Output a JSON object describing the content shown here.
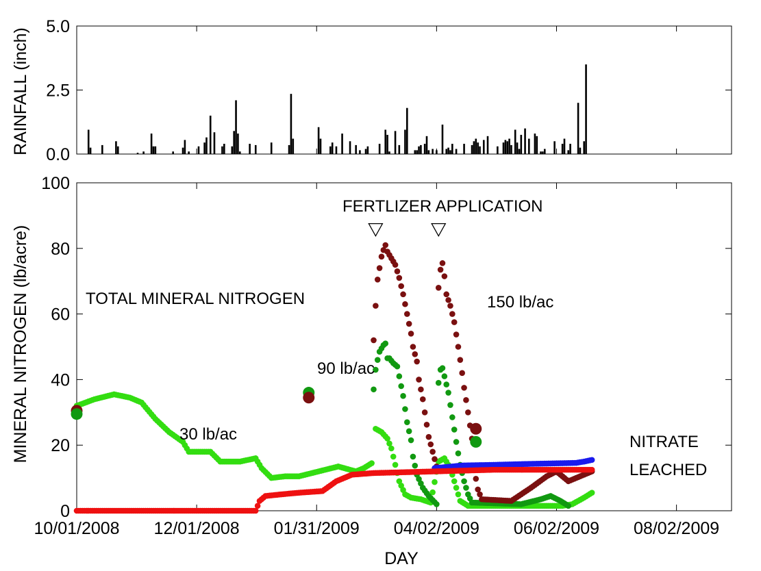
{
  "chart_data": [
    {
      "type": "bar",
      "ylabel": "RAINFALL (inch)",
      "ylim": [
        0,
        5
      ],
      "yticks": [
        "0.0",
        "2.5",
        "5.0"
      ],
      "xlim": [
        "10/01/2008",
        "08/30/2009"
      ],
      "colors": {
        "bar": "#000000"
      },
      "series": [
        {
          "dates": [
            "2008-10-07",
            "2008-10-08",
            "2008-10-14",
            "2008-10-21",
            "2008-10-22",
            "2008-11-01",
            "2008-11-04",
            "2008-11-08",
            "2008-11-09",
            "2008-11-10",
            "2008-11-19",
            "2008-11-24",
            "2008-11-25",
            "2008-11-27",
            "2008-12-02",
            "2008-12-05",
            "2008-12-06",
            "2008-12-08",
            "2008-12-10",
            "2008-12-14",
            "2008-12-15",
            "2008-12-19",
            "2008-12-20",
            "2008-12-21",
            "2008-12-22",
            "2008-12-23",
            "2008-12-28",
            "2008-12-31",
            "2009-01-08",
            "2009-01-17",
            "2009-01-18",
            "2009-01-19",
            "2009-02-01",
            "2009-02-02",
            "2009-02-07",
            "2009-02-08",
            "2009-02-10",
            "2009-02-13",
            "2009-02-17",
            "2009-02-20",
            "2009-02-22",
            "2009-02-25",
            "2009-02-26",
            "2009-03-04",
            "2009-03-07",
            "2009-03-08",
            "2009-03-09",
            "2009-03-12",
            "2009-03-14",
            "2009-03-17",
            "2009-03-18",
            "2009-03-22",
            "2009-03-23",
            "2009-03-24",
            "2009-03-25",
            "2009-03-27",
            "2009-03-28",
            "2009-03-29",
            "2009-03-31",
            "2009-04-02",
            "2009-04-05",
            "2009-04-07",
            "2009-04-08",
            "2009-04-09",
            "2009-04-10",
            "2009-04-12",
            "2009-04-16",
            "2009-04-20",
            "2009-04-21",
            "2009-04-22",
            "2009-04-23",
            "2009-04-24",
            "2009-04-26",
            "2009-04-28",
            "2009-05-03",
            "2009-05-06",
            "2009-05-07",
            "2009-05-08",
            "2009-05-09",
            "2009-05-10",
            "2009-05-12",
            "2009-05-13",
            "2009-05-14",
            "2009-05-15",
            "2009-05-17",
            "2009-05-19",
            "2009-05-22",
            "2009-05-23",
            "2009-05-25",
            "2009-05-26",
            "2009-05-27",
            "2009-06-01",
            "2009-06-05",
            "2009-06-06",
            "2009-06-08",
            "2009-06-09",
            "2009-06-13",
            "2009-06-14",
            "2009-06-16",
            "2009-06-17"
          ],
          "values": [
            0.95,
            0.25,
            0.35,
            0.5,
            0.3,
            0.05,
            0.1,
            0.8,
            0.3,
            0.3,
            0.1,
            0.25,
            0.55,
            0.1,
            0.3,
            0.45,
            0.65,
            1.5,
            0.85,
            0.3,
            0.4,
            0.3,
            0.9,
            2.1,
            0.8,
            0.1,
            0.4,
            0.35,
            0.45,
            0.35,
            2.35,
            0.6,
            1.05,
            0.6,
            0.3,
            0.45,
            0.3,
            0.8,
            0.5,
            0.35,
            0.15,
            0.2,
            0.3,
            0.4,
            0.95,
            0.75,
            0.1,
            0.9,
            0.35,
            0.95,
            1.8,
            0.15,
            0.15,
            0.3,
            0.35,
            0.4,
            0.7,
            0.15,
            0.2,
            0.15,
            1.15,
            0.2,
            0.25,
            0.15,
            0.4,
            0.2,
            0.4,
            0.35,
            0.5,
            0.6,
            0.45,
            0.3,
            0.55,
            0.7,
            0.3,
            0.45,
            0.55,
            0.5,
            0.6,
            0.35,
            0.95,
            0.45,
            0.2,
            0.75,
            1.0,
            0.6,
            0.8,
            0.7,
            0.1,
            0.1,
            0.2,
            0.5,
            0.4,
            0.6,
            0.15,
            0.4,
            2.0,
            0.25,
            0.5,
            3.5
          ]
        }
      ]
    },
    {
      "type": "scatter",
      "xlabel": "DAY",
      "ylabel": "MINERAL NITROGEN (lb/acre)",
      "ylim": [
        0,
        100
      ],
      "yticks": [
        "0",
        "20",
        "40",
        "60",
        "80",
        "100"
      ],
      "xlim": [
        "10/01/2008",
        "08/30/2009"
      ],
      "xticks": [
        "10/01/2008",
        "12/01/2008",
        "01/31/2009",
        "04/02/2009",
        "06/02/2009",
        "08/02/2009"
      ],
      "annotations": {
        "fertilizer": "FERTLIZER APPLICATION",
        "total": "TOTAL  MINERAL NITROGEN",
        "r90": "90 lb/ac",
        "r150": "150 lb/ac",
        "r30": "30 lb/ac",
        "nitrate1": "NITRATE",
        "nitrate2": "LEACHED"
      },
      "fertilizer_application_dates": [
        "2009-03-02",
        "2009-04-03"
      ],
      "series": [
        {
          "color": "#33dd11",
          "pts": [
            [
              "2008-10-01",
              32
            ],
            [
              "2008-10-10",
              34
            ],
            [
              "2008-10-20",
              35.5
            ],
            [
              "2008-10-28",
              34.5
            ],
            [
              "2008-11-03",
              33
            ],
            [
              "2008-11-10",
              28
            ],
            [
              "2008-11-17",
              24
            ],
            [
              "2008-11-24",
              21
            ],
            [
              "2008-11-27",
              18
            ],
            [
              "2008-12-02",
              18
            ],
            [
              "2008-12-08",
              18
            ],
            [
              "2008-12-13",
              15
            ],
            [
              "2008-12-23",
              15
            ],
            [
              "2008-12-31",
              16
            ],
            [
              "2009-01-03",
              13
            ],
            [
              "2009-01-08",
              10
            ],
            [
              "2009-01-15",
              10.5
            ],
            [
              "2009-01-22",
              10.5
            ],
            [
              "2009-02-01",
              12
            ],
            [
              "2009-02-11",
              13.5
            ],
            [
              "2009-02-17",
              12.5
            ],
            [
              "2009-02-20",
              12
            ],
            [
              "2009-02-24",
              13
            ],
            [
              "2009-02-28",
              14.5
            ],
            [
              "2009-03-02",
              25
            ],
            [
              "2009-03-05",
              24
            ],
            [
              "2009-03-08",
              22
            ],
            [
              "2009-03-10",
              19
            ],
            [
              "2009-03-14",
              9
            ],
            [
              "2009-03-17",
              5
            ],
            [
              "2009-03-20",
              4
            ],
            [
              "2009-03-25",
              3.5
            ],
            [
              "2009-03-30",
              2.5
            ],
            [
              "2009-04-03",
              15
            ],
            [
              "2009-04-06",
              16
            ],
            [
              "2009-04-09",
              13
            ],
            [
              "2009-04-14",
              3
            ],
            [
              "2009-04-18",
              1.5
            ],
            [
              "2009-04-30",
              1.5
            ],
            [
              "2009-05-15",
              1.5
            ],
            [
              "2009-05-25",
              1.5
            ],
            [
              "2009-06-05",
              1.5
            ],
            [
              "2009-06-10",
              2
            ],
            [
              "2009-06-16",
              4
            ],
            [
              "2009-06-20",
              5.5
            ]
          ]
        },
        {
          "color": "#119911",
          "pts": [
            [
              "2009-03-01",
              37
            ],
            [
              "2009-03-02",
              43
            ],
            [
              "2009-03-03",
              46
            ],
            [
              "2009-03-04",
              48.5
            ],
            [
              "2009-03-06",
              50.5
            ],
            [
              "2009-03-07",
              51
            ],
            [
              "2009-03-08",
              46.5
            ],
            [
              "2009-03-09",
              46.5
            ],
            [
              "2009-03-11",
              45
            ],
            [
              "2009-03-13",
              44
            ],
            [
              "2009-03-14",
              41
            ],
            [
              "2009-03-16",
              35
            ],
            [
              "2009-03-18",
              27
            ],
            [
              "2009-03-20",
              21.5
            ],
            [
              "2009-03-21",
              16.5
            ],
            [
              "2009-03-23",
              11
            ],
            [
              "2009-03-26",
              7
            ],
            [
              "2009-03-29",
              4.5
            ],
            [
              "2009-04-02",
              2
            ],
            [
              "2009-04-03",
              39
            ],
            [
              "2009-04-04",
              43
            ],
            [
              "2009-04-05",
              43.5
            ],
            [
              "2009-04-06",
              41
            ],
            [
              "2009-04-08",
              36
            ],
            [
              "2009-04-10",
              28.5
            ],
            [
              "2009-04-12",
              21
            ],
            [
              "2009-04-14",
              14
            ],
            [
              "2009-04-16",
              9
            ],
            [
              "2009-04-18",
              5
            ],
            [
              "2009-04-20",
              2.5
            ],
            [
              "2009-05-15",
              2
            ],
            [
              "2009-05-25",
              3.5
            ],
            [
              "2009-05-30",
              4.5
            ],
            [
              "2009-06-04",
              3
            ],
            [
              "2009-06-08",
              1.5
            ]
          ]
        },
        {
          "color": "#7a1010",
          "pts": [
            [
              "2009-03-01",
              52
            ],
            [
              "2009-03-02",
              62.5
            ],
            [
              "2009-03-03",
              70.5
            ],
            [
              "2009-03-05",
              77.5
            ],
            [
              "2009-03-06",
              79.5
            ],
            [
              "2009-03-07",
              81
            ],
            [
              "2009-03-08",
              79
            ],
            [
              "2009-03-10",
              77
            ],
            [
              "2009-03-12",
              75
            ],
            [
              "2009-03-14",
              71
            ],
            [
              "2009-03-16",
              66
            ],
            [
              "2009-03-18",
              60
            ],
            [
              "2009-03-20",
              54
            ],
            [
              "2009-03-21",
              50
            ],
            [
              "2009-03-23",
              45.5
            ],
            [
              "2009-03-24",
              40
            ],
            [
              "2009-03-26",
              34
            ],
            [
              "2009-03-27",
              30
            ],
            [
              "2009-03-29",
              22.5
            ],
            [
              "2009-03-31",
              18
            ],
            [
              "2009-04-02",
              13.5
            ],
            [
              "2009-04-03",
              68
            ],
            [
              "2009-04-04",
              73.5
            ],
            [
              "2009-04-05",
              75.5
            ],
            [
              "2009-04-06",
              71.5
            ],
            [
              "2009-04-07",
              66
            ],
            [
              "2009-04-09",
              62.5
            ],
            [
              "2009-04-11",
              57.5
            ],
            [
              "2009-04-13",
              50
            ],
            [
              "2009-04-15",
              42
            ],
            [
              "2009-04-16",
              37.5
            ],
            [
              "2009-04-18",
              30
            ],
            [
              "2009-04-20",
              22
            ],
            [
              "2009-04-21",
              13
            ],
            [
              "2009-04-23",
              6.5
            ],
            [
              "2009-04-25",
              3.5
            ],
            [
              "2009-05-10",
              3
            ],
            [
              "2009-05-20",
              7
            ],
            [
              "2009-05-28",
              10.5
            ],
            [
              "2009-06-02",
              12
            ],
            [
              "2009-06-08",
              9
            ],
            [
              "2009-06-14",
              10.5
            ],
            [
              "2009-06-20",
              12
            ]
          ]
        },
        {
          "color": "#1a1aee",
          "pts": [
            [
              "2009-04-01",
              13
            ],
            [
              "2009-04-15",
              13.8
            ],
            [
              "2009-05-01",
              14
            ],
            [
              "2009-05-20",
              14.3
            ],
            [
              "2009-06-05",
              14.5
            ],
            [
              "2009-06-12",
              14.6
            ],
            [
              "2009-06-16",
              15
            ],
            [
              "2009-06-20",
              15.5
            ]
          ]
        },
        {
          "color": "#ee1111",
          "pts": [
            [
              "2008-10-01",
              0
            ],
            [
              "2008-12-31",
              0
            ],
            [
              "2009-01-02",
              3
            ],
            [
              "2009-01-05",
              4.5
            ],
            [
              "2009-01-13",
              5
            ],
            [
              "2009-01-22",
              5.5
            ],
            [
              "2009-02-03",
              6
            ],
            [
              "2009-02-10",
              9
            ],
            [
              "2009-02-18",
              11
            ],
            [
              "2009-03-01",
              11.5
            ],
            [
              "2009-04-01",
              12
            ],
            [
              "2009-05-01",
              12.5
            ],
            [
              "2009-06-01",
              12.5
            ],
            [
              "2009-06-20",
              12.5
            ]
          ]
        }
      ],
      "initial_points": [
        {
          "date": "2008-10-01",
          "value": 30.5,
          "color": "#7a1010"
        },
        {
          "date": "2008-10-01",
          "value": 29.5,
          "color": "#119911"
        },
        {
          "date": "2009-01-27",
          "value": 36,
          "color": "#119911"
        },
        {
          "date": "2009-01-27",
          "value": 34.5,
          "color": "#7a1010"
        },
        {
          "date": "2009-04-22",
          "value": 25,
          "color": "#7a1010"
        },
        {
          "date": "2009-04-22",
          "value": 21,
          "color": "#119911"
        }
      ]
    }
  ]
}
